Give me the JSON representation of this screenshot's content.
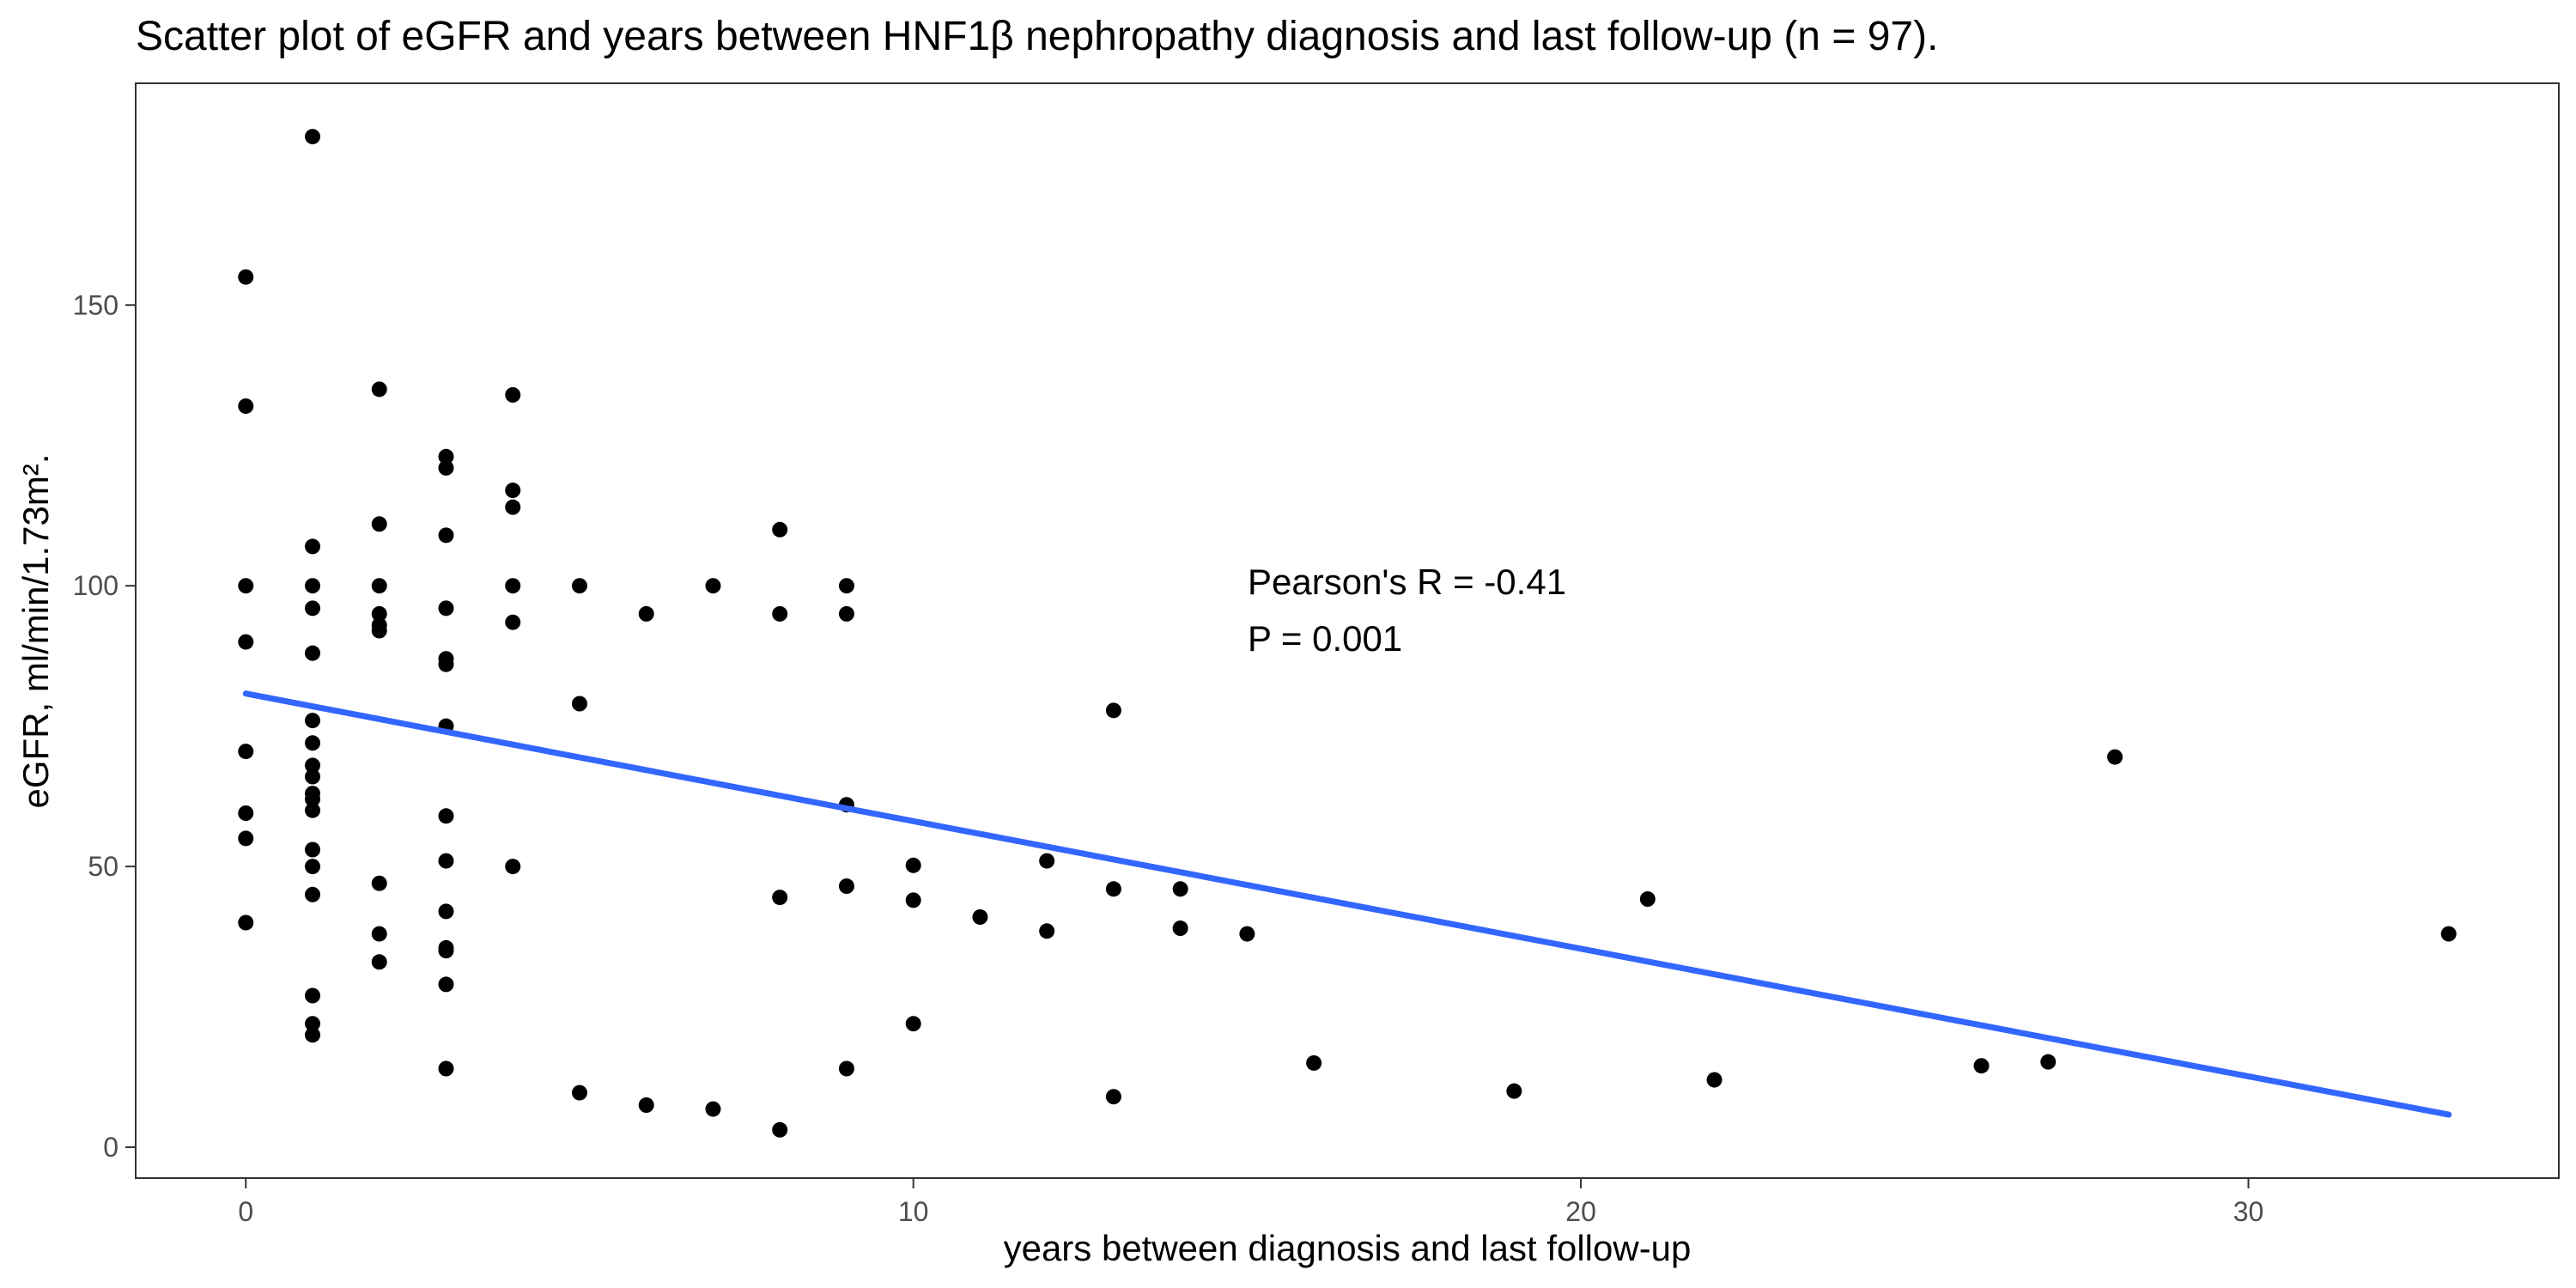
{
  "colors": {
    "points": "#000000",
    "fit_line": "#3366FF",
    "panel_border": "#333333",
    "ticks": "#333333",
    "tick_labels": "#4d4d4d",
    "background": "#ffffff"
  },
  "chart_data": {
    "type": "scatter",
    "title": "Scatter plot of eGFR and years between HNF1β nephropathy diagnosis and last follow-up (n = 97).",
    "xlabel": "years between diagnosis and last follow-up",
    "ylabel": "eGFR, ml/min/1.73m².",
    "xlim": [
      -1.65,
      34.65
    ],
    "ylim": [
      -5.5,
      189.5
    ],
    "x_ticks": [
      0,
      10,
      20,
      30
    ],
    "x_tick_labels": [
      "0",
      "10",
      "20",
      "30"
    ],
    "y_ticks": [
      0,
      50,
      100,
      150
    ],
    "y_tick_labels": [
      "0",
      "50",
      "100",
      "150"
    ],
    "grid": false,
    "legend": "none",
    "annotations": [
      "Pearson's R = -0.41",
      "P = 0.001"
    ],
    "fit_line": {
      "x": [
        0,
        33
      ],
      "y": [
        80.8,
        5.8
      ]
    },
    "points": [
      {
        "x": 0,
        "y": 155
      },
      {
        "x": 0,
        "y": 132
      },
      {
        "x": 0,
        "y": 100
      },
      {
        "x": 0,
        "y": 90
      },
      {
        "x": 0,
        "y": 70.5
      },
      {
        "x": 0,
        "y": 59.5
      },
      {
        "x": 0,
        "y": 55
      },
      {
        "x": 0,
        "y": 40
      },
      {
        "x": 1,
        "y": 180
      },
      {
        "x": 1,
        "y": 107
      },
      {
        "x": 1,
        "y": 100
      },
      {
        "x": 1,
        "y": 96
      },
      {
        "x": 1,
        "y": 88
      },
      {
        "x": 1,
        "y": 76
      },
      {
        "x": 1,
        "y": 72
      },
      {
        "x": 1,
        "y": 68
      },
      {
        "x": 1,
        "y": 66
      },
      {
        "x": 1,
        "y": 63
      },
      {
        "x": 1,
        "y": 62
      },
      {
        "x": 1,
        "y": 60
      },
      {
        "x": 1,
        "y": 53
      },
      {
        "x": 1,
        "y": 50
      },
      {
        "x": 1,
        "y": 45
      },
      {
        "x": 1,
        "y": 27
      },
      {
        "x": 1,
        "y": 22
      },
      {
        "x": 1,
        "y": 20
      },
      {
        "x": 2,
        "y": 135
      },
      {
        "x": 2,
        "y": 111
      },
      {
        "x": 2,
        "y": 100
      },
      {
        "x": 2,
        "y": 95
      },
      {
        "x": 2,
        "y": 93
      },
      {
        "x": 2,
        "y": 92
      },
      {
        "x": 2,
        "y": 47
      },
      {
        "x": 2,
        "y": 38
      },
      {
        "x": 2,
        "y": 33
      },
      {
        "x": 3,
        "y": 123
      },
      {
        "x": 3,
        "y": 121
      },
      {
        "x": 3,
        "y": 109
      },
      {
        "x": 3,
        "y": 96
      },
      {
        "x": 3,
        "y": 87
      },
      {
        "x": 3,
        "y": 86
      },
      {
        "x": 3,
        "y": 75
      },
      {
        "x": 3,
        "y": 59
      },
      {
        "x": 3,
        "y": 51
      },
      {
        "x": 3,
        "y": 42
      },
      {
        "x": 3,
        "y": 35.5
      },
      {
        "x": 3,
        "y": 35
      },
      {
        "x": 3,
        "y": 29
      },
      {
        "x": 3,
        "y": 14
      },
      {
        "x": 4,
        "y": 134
      },
      {
        "x": 4,
        "y": 117
      },
      {
        "x": 4,
        "y": 114
      },
      {
        "x": 4,
        "y": 100
      },
      {
        "x": 4,
        "y": 93.5
      },
      {
        "x": 4,
        "y": 50
      },
      {
        "x": 5,
        "y": 100
      },
      {
        "x": 5,
        "y": 79
      },
      {
        "x": 5,
        "y": 9.7
      },
      {
        "x": 6,
        "y": 95
      },
      {
        "x": 6,
        "y": 7.5
      },
      {
        "x": 7,
        "y": 100
      },
      {
        "x": 7,
        "y": 6.8
      },
      {
        "x": 8,
        "y": 110
      },
      {
        "x": 8,
        "y": 95
      },
      {
        "x": 8,
        "y": 44.5
      },
      {
        "x": 8,
        "y": 3.1
      },
      {
        "x": 9,
        "y": 100
      },
      {
        "x": 9,
        "y": 95
      },
      {
        "x": 9,
        "y": 61
      },
      {
        "x": 9,
        "y": 46.5
      },
      {
        "x": 9,
        "y": 14
      },
      {
        "x": 10,
        "y": 50.2
      },
      {
        "x": 10,
        "y": 44
      },
      {
        "x": 10,
        "y": 22
      },
      {
        "x": 11,
        "y": 41
      },
      {
        "x": 12,
        "y": 51
      },
      {
        "x": 12,
        "y": 38.5
      },
      {
        "x": 13,
        "y": 77.8
      },
      {
        "x": 13,
        "y": 46
      },
      {
        "x": 13,
        "y": 9
      },
      {
        "x": 14,
        "y": 46
      },
      {
        "x": 14,
        "y": 39
      },
      {
        "x": 15,
        "y": 38
      },
      {
        "x": 16,
        "y": 15
      },
      {
        "x": 19,
        "y": 10
      },
      {
        "x": 21,
        "y": 44.2
      },
      {
        "x": 22,
        "y": 12
      },
      {
        "x": 26,
        "y": 14.5
      },
      {
        "x": 27,
        "y": 15.2
      },
      {
        "x": 28,
        "y": 69.5
      },
      {
        "x": 33,
        "y": 38
      }
    ]
  }
}
